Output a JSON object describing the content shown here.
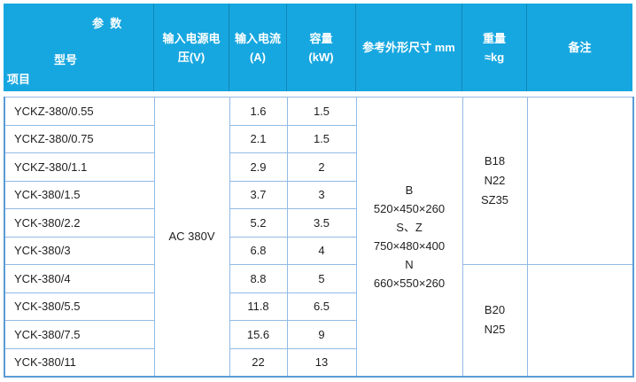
{
  "header": {
    "corner": {
      "top_right": "参  数",
      "middle": "型号",
      "bottom_left": "项目"
    },
    "columns": [
      {
        "line1": "输入电源电",
        "line2": "压(V)"
      },
      {
        "line1": "输入电流",
        "line2": "(A)"
      },
      {
        "line1": "容量",
        "line2": "(kW)"
      },
      {
        "line1": "参考外形尺寸 mm",
        "line2": ""
      },
      {
        "line1": "重量",
        "line2": "≈kg"
      },
      {
        "line1": "备注",
        "line2": ""
      }
    ]
  },
  "body": {
    "voltage": "AC 380V",
    "dimensions": "B\n520×450×260\nS、Z\n750×480×400\nN\n660×550×260",
    "weight_top": "B18\nN22\nSZ35",
    "weight_bottom": "B20\nN25",
    "remarks_top": "",
    "remarks_bottom": "",
    "rows": [
      {
        "model": "YCKZ-380/0.55",
        "current": "1.6",
        "capacity": "1.5"
      },
      {
        "model": "YCKZ-380/0.75",
        "current": "2.1",
        "capacity": "1.5"
      },
      {
        "model": "YCKZ-380/1.1",
        "current": "2.9",
        "capacity": "2"
      },
      {
        "model": "YCK-380/1.5",
        "current": "3.7",
        "capacity": "3"
      },
      {
        "model": "YCK-380/2.2",
        "current": "5.2",
        "capacity": "3.5"
      },
      {
        "model": "YCK-380/3",
        "current": "6.8",
        "capacity": "4"
      },
      {
        "model": "YCK-380/4",
        "current": "8.8",
        "capacity": "5"
      },
      {
        "model": "YCK-380/5.5",
        "current": "11.8",
        "capacity": "6.5"
      },
      {
        "model": "YCK-380/7.5",
        "current": "15.6",
        "capacity": "9"
      },
      {
        "model": "YCK-380/11",
        "current": "22",
        "capacity": "13"
      }
    ]
  },
  "colors": {
    "header_bg": "#17A7E0",
    "header_text": "#FFFFFF",
    "grid_line": "#92BAE5",
    "outer_border": "#5B9BD5",
    "body_text": "#1F1F1F"
  }
}
